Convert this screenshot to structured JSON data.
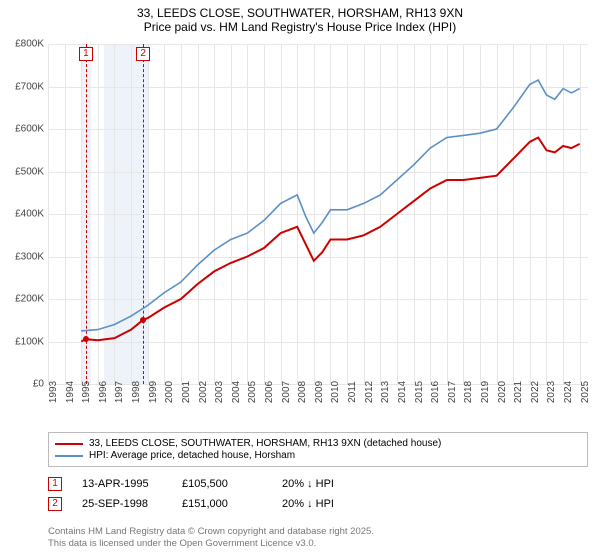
{
  "title_line1": "33, LEEDS CLOSE, SOUTHWATER, HORSHAM, RH13 9XN",
  "title_line2": "Price paid vs. HM Land Registry's House Price Index (HPI)",
  "chart": {
    "type": "line",
    "background_color": "#ffffff",
    "grid_color": "#e6e6e6",
    "ylim": [
      0,
      800000
    ],
    "ytick_step": 100000,
    "yticks": [
      "£0",
      "£100K",
      "£200K",
      "£300K",
      "£400K",
      "£500K",
      "£600K",
      "£700K",
      "£800K"
    ],
    "xlim": [
      1993,
      2025.5
    ],
    "xticks": [
      1993,
      1994,
      1995,
      1996,
      1997,
      1998,
      1999,
      2000,
      2001,
      2002,
      2003,
      2004,
      2005,
      2006,
      2007,
      2008,
      2009,
      2010,
      2011,
      2012,
      2013,
      2014,
      2015,
      2016,
      2017,
      2018,
      2019,
      2020,
      2021,
      2022,
      2023,
      2024,
      2025
    ],
    "vbands": [
      {
        "from": 1995.0,
        "to": 1995.6,
        "color": "#eef3f9"
      },
      {
        "from": 1996.4,
        "to": 1999.0,
        "color": "#eef3f9"
      }
    ],
    "vlines": [
      {
        "x": 1995.28,
        "color": "#cc0000",
        "label": "1",
        "label_color": "#cc0000"
      },
      {
        "x": 1998.73,
        "color": "#cc0000",
        "label": "2",
        "label_color": "#cc0000"
      }
    ],
    "series": [
      {
        "name": "33, LEEDS CLOSE, SOUTHWATER, HORSHAM, RH13 9XN (detached house)",
        "color": "#cc0000",
        "line_width": 2,
        "points": [
          [
            1995.0,
            100000
          ],
          [
            1995.28,
            105500
          ],
          [
            1996.0,
            103000
          ],
          [
            1997.0,
            108000
          ],
          [
            1998.0,
            128000
          ],
          [
            1998.73,
            151000
          ],
          [
            1999.0,
            155000
          ],
          [
            2000.0,
            180000
          ],
          [
            2001.0,
            200000
          ],
          [
            2002.0,
            235000
          ],
          [
            2003.0,
            265000
          ],
          [
            2004.0,
            285000
          ],
          [
            2005.0,
            300000
          ],
          [
            2006.0,
            320000
          ],
          [
            2007.0,
            355000
          ],
          [
            2008.0,
            370000
          ],
          [
            2008.5,
            330000
          ],
          [
            2009.0,
            290000
          ],
          [
            2009.5,
            310000
          ],
          [
            2010.0,
            340000
          ],
          [
            2011.0,
            340000
          ],
          [
            2012.0,
            350000
          ],
          [
            2013.0,
            370000
          ],
          [
            2014.0,
            400000
          ],
          [
            2015.0,
            430000
          ],
          [
            2016.0,
            460000
          ],
          [
            2017.0,
            480000
          ],
          [
            2018.0,
            480000
          ],
          [
            2019.0,
            485000
          ],
          [
            2020.0,
            490000
          ],
          [
            2021.0,
            530000
          ],
          [
            2022.0,
            570000
          ],
          [
            2022.5,
            580000
          ],
          [
            2023.0,
            550000
          ],
          [
            2023.5,
            545000
          ],
          [
            2024.0,
            560000
          ],
          [
            2024.5,
            555000
          ],
          [
            2025.0,
            565000
          ]
        ],
        "markers": [
          {
            "x": 1995.28,
            "y": 105500
          },
          {
            "x": 1998.73,
            "y": 151000
          }
        ]
      },
      {
        "name": "HPI: Average price, detached house, Horsham",
        "color": "#5b8fc7",
        "line_width": 1.6,
        "points": [
          [
            1995.0,
            125000
          ],
          [
            1996.0,
            128000
          ],
          [
            1997.0,
            140000
          ],
          [
            1998.0,
            160000
          ],
          [
            1999.0,
            185000
          ],
          [
            2000.0,
            215000
          ],
          [
            2001.0,
            240000
          ],
          [
            2002.0,
            280000
          ],
          [
            2003.0,
            315000
          ],
          [
            2004.0,
            340000
          ],
          [
            2005.0,
            355000
          ],
          [
            2006.0,
            385000
          ],
          [
            2007.0,
            425000
          ],
          [
            2008.0,
            445000
          ],
          [
            2008.5,
            395000
          ],
          [
            2009.0,
            355000
          ],
          [
            2009.5,
            380000
          ],
          [
            2010.0,
            410000
          ],
          [
            2011.0,
            410000
          ],
          [
            2012.0,
            425000
          ],
          [
            2013.0,
            445000
          ],
          [
            2014.0,
            480000
          ],
          [
            2015.0,
            515000
          ],
          [
            2016.0,
            555000
          ],
          [
            2017.0,
            580000
          ],
          [
            2018.0,
            585000
          ],
          [
            2019.0,
            590000
          ],
          [
            2020.0,
            600000
          ],
          [
            2021.0,
            650000
          ],
          [
            2022.0,
            705000
          ],
          [
            2022.5,
            715000
          ],
          [
            2023.0,
            680000
          ],
          [
            2023.5,
            670000
          ],
          [
            2024.0,
            695000
          ],
          [
            2024.5,
            685000
          ],
          [
            2025.0,
            695000
          ]
        ]
      }
    ]
  },
  "legend": {
    "items": [
      {
        "color": "#cc0000",
        "label": "33, LEEDS CLOSE, SOUTHWATER, HORSHAM, RH13 9XN (detached house)"
      },
      {
        "color": "#5b8fc7",
        "label": "HPI: Average price, detached house, Horsham"
      }
    ]
  },
  "transactions": [
    {
      "n": "1",
      "color": "#cc0000",
      "date": "13-APR-1995",
      "price": "£105,500",
      "delta": "20% ↓ HPI"
    },
    {
      "n": "2",
      "color": "#cc0000",
      "date": "25-SEP-1998",
      "price": "£151,000",
      "delta": "20% ↓ HPI"
    }
  ],
  "attribution_line1": "Contains HM Land Registry data © Crown copyright and database right 2025.",
  "attribution_line2": "This data is licensed under the Open Government Licence v3.0."
}
